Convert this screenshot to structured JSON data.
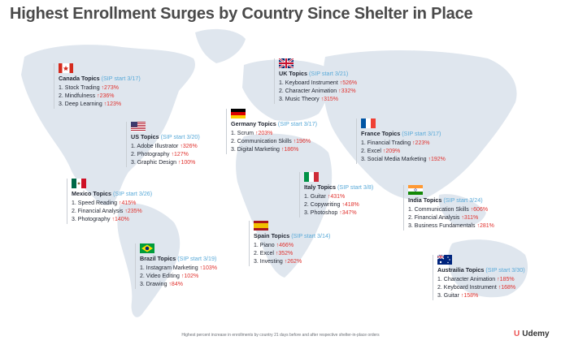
{
  "title": "Highest Enrollment Surges by Country Since Shelter in Place",
  "footnote": "Highest percent increase in enrollments by country 21 days before and after respective shelter-in-place orders",
  "logo": {
    "mark": "U",
    "text": "Udemy"
  },
  "countries": [
    {
      "key": "canada",
      "name": "Canada Topics",
      "sip": "(SIP start 3/17)",
      "topics": [
        {
          "label": "1. Stock Trading",
          "pct": "273%"
        },
        {
          "label": "2. Mindfulness",
          "pct": "236%"
        },
        {
          "label": "3. Deep Learning",
          "pct": "123%"
        }
      ]
    },
    {
      "key": "uk",
      "name": "UK Topics",
      "sip": "(SIP start 3/21)",
      "topics": [
        {
          "label": "1. Keyboard Instrument",
          "pct": "526%"
        },
        {
          "label": "2. Character Animation",
          "pct": "332%"
        },
        {
          "label": "3. Music Theory",
          "pct": "315%"
        }
      ]
    },
    {
      "key": "us",
      "name": "US Topics",
      "sip": "(SIP start 3/20)",
      "topics": [
        {
          "label": "1. Adobe Illustrator",
          "pct": "326%"
        },
        {
          "label": "2. Photography",
          "pct": "127%"
        },
        {
          "label": "3. Graphic Design",
          "pct": "100%"
        }
      ]
    },
    {
      "key": "germany",
      "name": "Germany Topics",
      "sip": "(SIP start 3/17)",
      "topics": [
        {
          "label": "1. Scrum",
          "pct": "203%"
        },
        {
          "label": "2. Communication Skills",
          "pct": "196%"
        },
        {
          "label": "3. Digital Marketing",
          "pct": "186%"
        }
      ]
    },
    {
      "key": "france",
      "name": "France Topics",
      "sip": "(SIP start 3/17)",
      "topics": [
        {
          "label": "1. Financial Trading",
          "pct": "223%"
        },
        {
          "label": "2. Excel",
          "pct": "209%"
        },
        {
          "label": "3. Social Media Marketing",
          "pct": "192%"
        }
      ]
    },
    {
      "key": "mexico",
      "name": "Mexico Topics",
      "sip": "(SIP start 3/26)",
      "topics": [
        {
          "label": "1. Speed Reading",
          "pct": "415%"
        },
        {
          "label": "2. Financial Analysis",
          "pct": "235%"
        },
        {
          "label": "3. Photography",
          "pct": "140%"
        }
      ]
    },
    {
      "key": "italy",
      "name": "Italy Topics",
      "sip": "(SIP start 3/8)",
      "topics": [
        {
          "label": "1. Guitar",
          "pct": "431%"
        },
        {
          "label": "2. Copywriting",
          "pct": "418%"
        },
        {
          "label": "3. Photoshop",
          "pct": "347%"
        }
      ]
    },
    {
      "key": "india",
      "name": "India Topics",
      "sip": "(SIP start 3/24)",
      "topics": [
        {
          "label": "1. Communication Skills",
          "pct": "606%"
        },
        {
          "label": "2. Financial Analysis",
          "pct": "311%"
        },
        {
          "label": "3. Business Fundamentals",
          "pct": "281%"
        }
      ]
    },
    {
      "key": "spain",
      "name": "Spain Topics",
      "sip": "(SIP start 3/14)",
      "topics": [
        {
          "label": "1. Piano",
          "pct": "466%"
        },
        {
          "label": "2. Excel",
          "pct": "352%"
        },
        {
          "label": "3. Investing",
          "pct": "262%"
        }
      ]
    },
    {
      "key": "brazil",
      "name": "Brazil Topics",
      "sip": "(SIP start 3/19)",
      "topics": [
        {
          "label": "1. Instagram Marketing",
          "pct": "103%"
        },
        {
          "label": "2. Video Editing",
          "pct": "102%"
        },
        {
          "label": "3. Drawing",
          "pct": "84%"
        }
      ]
    },
    {
      "key": "australia",
      "name": "Austrailia Topics",
      "sip": "(SIP start 3/30)",
      "topics": [
        {
          "label": "1. Character Animation",
          "pct": "185%"
        },
        {
          "label": "2. Keyboard Instrument",
          "pct": "168%"
        },
        {
          "label": "3. Guitar",
          "pct": "158%"
        }
      ]
    }
  ],
  "colors": {
    "map": "#dfe6ee",
    "sip": "#58a9d8",
    "arrow": "#e0312d",
    "brand": "#ec5252"
  }
}
